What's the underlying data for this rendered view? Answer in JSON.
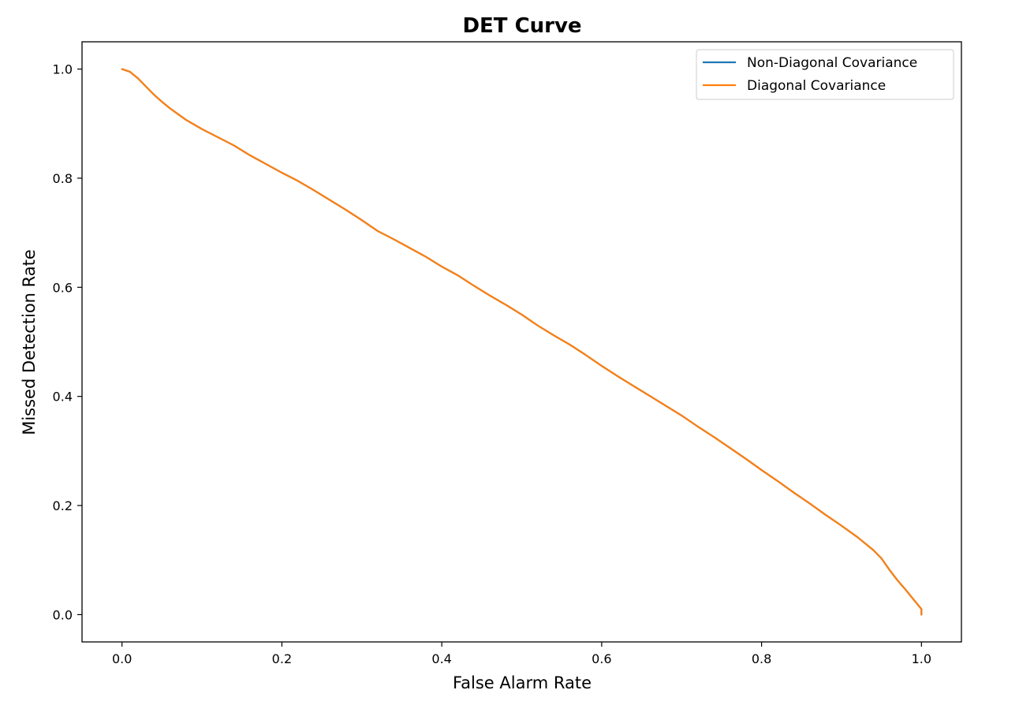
{
  "chart_data": {
    "type": "line",
    "title": "DET Curve",
    "xlabel": "False Alarm Rate",
    "ylabel": "Missed Detection Rate",
    "xlim": [
      -0.05,
      1.05
    ],
    "ylim": [
      -0.05,
      1.05
    ],
    "xticks": [
      0.0,
      0.2,
      0.4,
      0.6,
      0.8,
      1.0
    ],
    "yticks": [
      0.0,
      0.2,
      0.4,
      0.6,
      0.8,
      1.0
    ],
    "xtick_labels": [
      "0.0",
      "0.2",
      "0.4",
      "0.6",
      "0.8",
      "1.0"
    ],
    "ytick_labels": [
      "0.0",
      "0.2",
      "0.4",
      "0.6",
      "0.8",
      "1.0"
    ],
    "grid": false,
    "legend_position": "top-right",
    "series": [
      {
        "name": "Non-Diagonal Covariance",
        "color": "#1f77b4",
        "x": [
          0.0,
          0.01,
          0.02,
          0.03,
          0.04,
          0.05,
          0.06,
          0.08,
          0.1,
          0.12,
          0.14,
          0.16,
          0.18,
          0.2,
          0.22,
          0.24,
          0.26,
          0.28,
          0.3,
          0.32,
          0.34,
          0.36,
          0.38,
          0.4,
          0.42,
          0.44,
          0.46,
          0.48,
          0.5,
          0.52,
          0.54,
          0.56,
          0.58,
          0.6,
          0.62,
          0.64,
          0.66,
          0.68,
          0.7,
          0.72,
          0.74,
          0.76,
          0.78,
          0.8,
          0.82,
          0.84,
          0.86,
          0.88,
          0.9,
          0.92,
          0.94,
          0.95,
          0.96,
          0.97,
          0.98,
          0.99,
          1.0,
          1.0
        ],
        "y": [
          1.0,
          0.995,
          0.983,
          0.968,
          0.953,
          0.94,
          0.928,
          0.907,
          0.89,
          0.875,
          0.86,
          0.842,
          0.826,
          0.81,
          0.795,
          0.778,
          0.76,
          0.742,
          0.723,
          0.703,
          0.688,
          0.672,
          0.656,
          0.638,
          0.622,
          0.603,
          0.585,
          0.568,
          0.55,
          0.53,
          0.512,
          0.495,
          0.476,
          0.456,
          0.437,
          0.419,
          0.401,
          0.383,
          0.365,
          0.345,
          0.326,
          0.306,
          0.286,
          0.265,
          0.245,
          0.224,
          0.204,
          0.183,
          0.163,
          0.142,
          0.118,
          0.103,
          0.082,
          0.063,
          0.046,
          0.028,
          0.01,
          0.0
        ]
      },
      {
        "name": "Diagonal Covariance",
        "color": "#ff7f0e",
        "x": [
          0.0,
          0.01,
          0.02,
          0.03,
          0.04,
          0.05,
          0.06,
          0.08,
          0.1,
          0.12,
          0.14,
          0.16,
          0.18,
          0.2,
          0.22,
          0.24,
          0.26,
          0.28,
          0.3,
          0.32,
          0.34,
          0.36,
          0.38,
          0.4,
          0.42,
          0.44,
          0.46,
          0.48,
          0.5,
          0.52,
          0.54,
          0.56,
          0.58,
          0.6,
          0.62,
          0.64,
          0.66,
          0.68,
          0.7,
          0.72,
          0.74,
          0.76,
          0.78,
          0.8,
          0.82,
          0.84,
          0.86,
          0.88,
          0.9,
          0.92,
          0.94,
          0.95,
          0.96,
          0.97,
          0.98,
          0.99,
          1.0,
          1.0
        ],
        "y": [
          1.0,
          0.995,
          0.983,
          0.968,
          0.953,
          0.94,
          0.928,
          0.907,
          0.89,
          0.875,
          0.86,
          0.842,
          0.826,
          0.81,
          0.795,
          0.778,
          0.76,
          0.742,
          0.723,
          0.703,
          0.688,
          0.672,
          0.656,
          0.638,
          0.622,
          0.603,
          0.585,
          0.568,
          0.55,
          0.53,
          0.512,
          0.495,
          0.476,
          0.456,
          0.437,
          0.419,
          0.401,
          0.383,
          0.365,
          0.345,
          0.326,
          0.306,
          0.286,
          0.265,
          0.245,
          0.224,
          0.204,
          0.183,
          0.163,
          0.142,
          0.118,
          0.103,
          0.082,
          0.063,
          0.046,
          0.028,
          0.01,
          0.0
        ]
      }
    ]
  }
}
